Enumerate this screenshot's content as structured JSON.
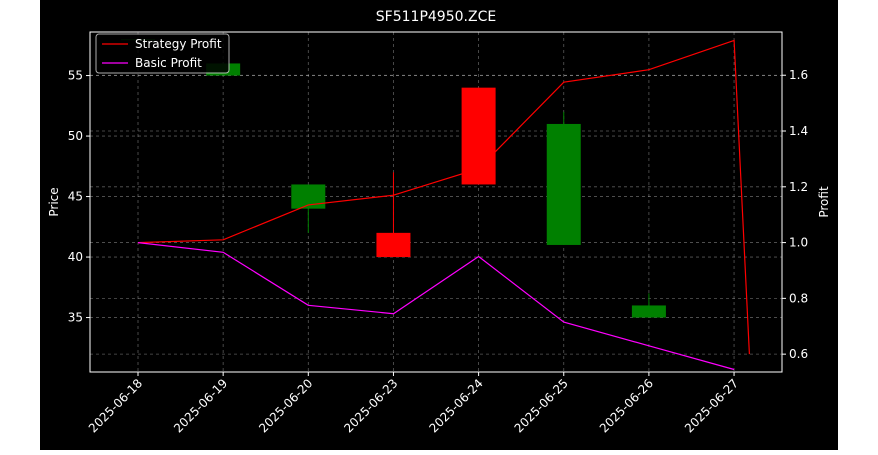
{
  "chart_data": {
    "type": "candlestick",
    "title": "SF511P4950.ZCE",
    "xlabel": "",
    "ylabel_left": "Price",
    "ylabel_right": "Profit",
    "categories": [
      "2025-06-18",
      "2025-06-19",
      "2025-06-20",
      "2025-06-23",
      "2025-06-24",
      "2025-06-25",
      "2025-06-26",
      "2025-06-27"
    ],
    "ylim_left": [
      30.5,
      58.6
    ],
    "ylim_right": [
      0.536,
      1.755
    ],
    "yticks_left": [
      35,
      40,
      45,
      50,
      55
    ],
    "yticks_right": [
      0.6,
      0.8,
      1.0,
      1.2,
      1.4,
      1.6
    ],
    "grid": true,
    "legend_position": "top-left",
    "candles": [
      {
        "date": "2025-06-18",
        "open": 58,
        "close": 58,
        "high": 58,
        "low": 58,
        "color": "#008000"
      },
      {
        "date": "2025-06-19",
        "open": 55,
        "close": 56,
        "high": 56,
        "low": 55,
        "color": "#008000"
      },
      {
        "date": "2025-06-20",
        "open": 44,
        "close": 46,
        "high": 46,
        "low": 42,
        "color": "#008000"
      },
      {
        "date": "2025-06-23",
        "open": 42,
        "close": 40,
        "high": 47,
        "low": 40,
        "color": "#ff0000"
      },
      {
        "date": "2025-06-24",
        "open": 54,
        "close": 46,
        "high": 54,
        "low": 46,
        "color": "#ff0000"
      },
      {
        "date": "2025-06-25",
        "open": 41,
        "close": 51,
        "high": 52,
        "low": 41,
        "color": "#008000"
      },
      {
        "date": "2025-06-26",
        "open": 35,
        "close": 36,
        "high": 37,
        "low": 35,
        "color": "#008000"
      }
    ],
    "series": [
      {
        "name": "Strategy Profit",
        "color": "#ff0000",
        "axis": "right",
        "points": [
          [
            0,
            1.0
          ],
          [
            1,
            1.01
          ],
          [
            2,
            1.135
          ],
          [
            3,
            1.17
          ],
          [
            4,
            1.265
          ],
          [
            5,
            1.575
          ],
          [
            6,
            1.62
          ],
          [
            7,
            1.725
          ],
          [
            7.18,
            0.6
          ]
        ]
      },
      {
        "name": "Basic Profit",
        "color": "#ff00ff",
        "axis": "right",
        "points": [
          [
            0,
            1.0
          ],
          [
            1,
            0.965
          ],
          [
            2,
            0.775
          ],
          [
            3,
            0.745
          ],
          [
            4,
            0.95
          ],
          [
            5,
            0.715
          ],
          [
            6,
            0.63
          ],
          [
            7,
            0.545
          ]
        ]
      }
    ]
  }
}
